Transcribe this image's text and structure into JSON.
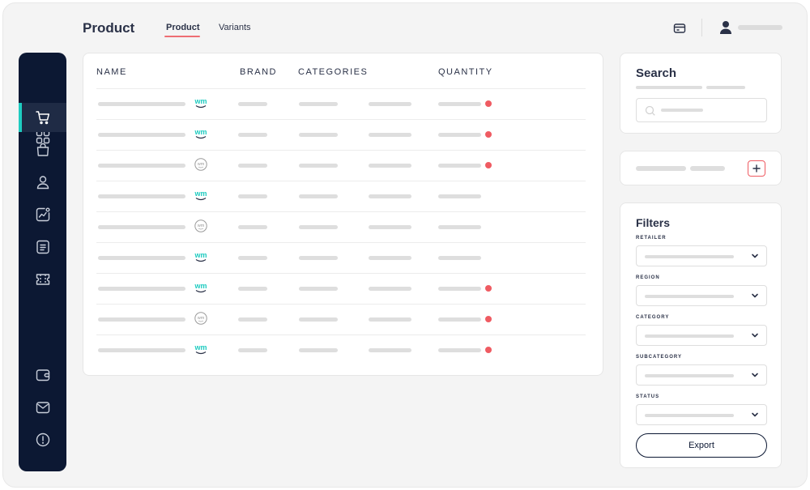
{
  "header": {
    "title": "Product",
    "tabs": [
      {
        "label": "Product",
        "active": true
      },
      {
        "label": "Variants",
        "active": false
      }
    ]
  },
  "sidebar": {
    "items": [
      {
        "icon": "grid-icon",
        "active": false
      },
      {
        "icon": "cart-icon",
        "active": true
      },
      {
        "icon": "bag-icon",
        "active": false
      },
      {
        "icon": "user-icon",
        "active": false
      },
      {
        "icon": "trend-chart-icon",
        "active": false
      },
      {
        "icon": "document-icon",
        "active": false
      },
      {
        "icon": "ticket-icon",
        "active": false
      },
      {
        "icon": "wallet-icon",
        "active": false
      },
      {
        "icon": "mail-icon",
        "active": false
      },
      {
        "icon": "alert-icon",
        "active": false
      }
    ]
  },
  "table": {
    "columns": [
      "NAME",
      "BRAND",
      "CATEGORIES",
      "QUANTITY"
    ],
    "rows": [
      {
        "logo": "wm",
        "alert": true
      },
      {
        "logo": "wm",
        "alert": true
      },
      {
        "logo": "wm-circle",
        "alert": true
      },
      {
        "logo": "wm",
        "alert": false
      },
      {
        "logo": "wm-circle",
        "alert": false
      },
      {
        "logo": "wm",
        "alert": false
      },
      {
        "logo": "wm",
        "alert": true
      },
      {
        "logo": "wm-circle",
        "alert": true
      },
      {
        "logo": "wm",
        "alert": true
      }
    ]
  },
  "search": {
    "title": "Search"
  },
  "filters": {
    "title": "Filters",
    "fields": [
      "RETAILER",
      "REGION",
      "CATEGORY",
      "SUBCATEGORY",
      "STATUS"
    ],
    "export_label": "Export"
  },
  "colors": {
    "sidebar_bg": "#0c1833",
    "accent_teal": "#1ecbc0",
    "alert_red": "#ef5b62",
    "tab_underline": "#ee6e73"
  }
}
